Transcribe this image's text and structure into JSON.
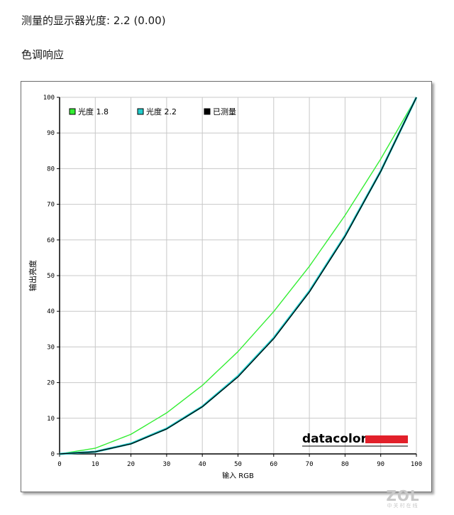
{
  "page": {
    "gamma_line": "测量的显示器光度:  2.2 (0.00)",
    "section_title": "色调响应"
  },
  "watermark": {
    "text": "ZOL",
    "subtext": "中关村在线"
  },
  "chart_data": {
    "type": "line",
    "title": "",
    "xlabel": "输入 RGB",
    "ylabel": "输出亮度",
    "xlim": [
      0,
      100
    ],
    "ylim": [
      0,
      100
    ],
    "xticks": [
      0,
      10,
      20,
      30,
      40,
      50,
      60,
      70,
      80,
      90,
      100
    ],
    "yticks": [
      0,
      10,
      20,
      30,
      40,
      50,
      60,
      70,
      80,
      90,
      100
    ],
    "grid": true,
    "legend_position": "top-left",
    "logo": "datacolor",
    "x": [
      0,
      10,
      20,
      30,
      40,
      50,
      60,
      70,
      80,
      90,
      100
    ],
    "series": [
      {
        "name": "光度 1.8",
        "legend_label": "光度 1.8",
        "color": "#33ee33",
        "width": 1.4,
        "values": [
          0,
          1.6,
          5.5,
          11.5,
          19.2,
          28.7,
          39.9,
          52.6,
          66.9,
          82.7,
          100
        ]
      },
      {
        "name": "光度 2.2",
        "legend_label": "光度 2.2",
        "color": "#22cccc",
        "width": 3,
        "values": [
          0,
          0.6,
          2.9,
          7.1,
          13.3,
          21.8,
          32.5,
          45.6,
          61.2,
          79.3,
          100
        ]
      },
      {
        "name": "已测量",
        "legend_label": "已测量",
        "color": "#000000",
        "width": 1.3,
        "values": [
          0,
          0.6,
          2.8,
          7.0,
          13.2,
          21.6,
          32.3,
          45.4,
          61.0,
          79.2,
          100
        ]
      }
    ]
  }
}
